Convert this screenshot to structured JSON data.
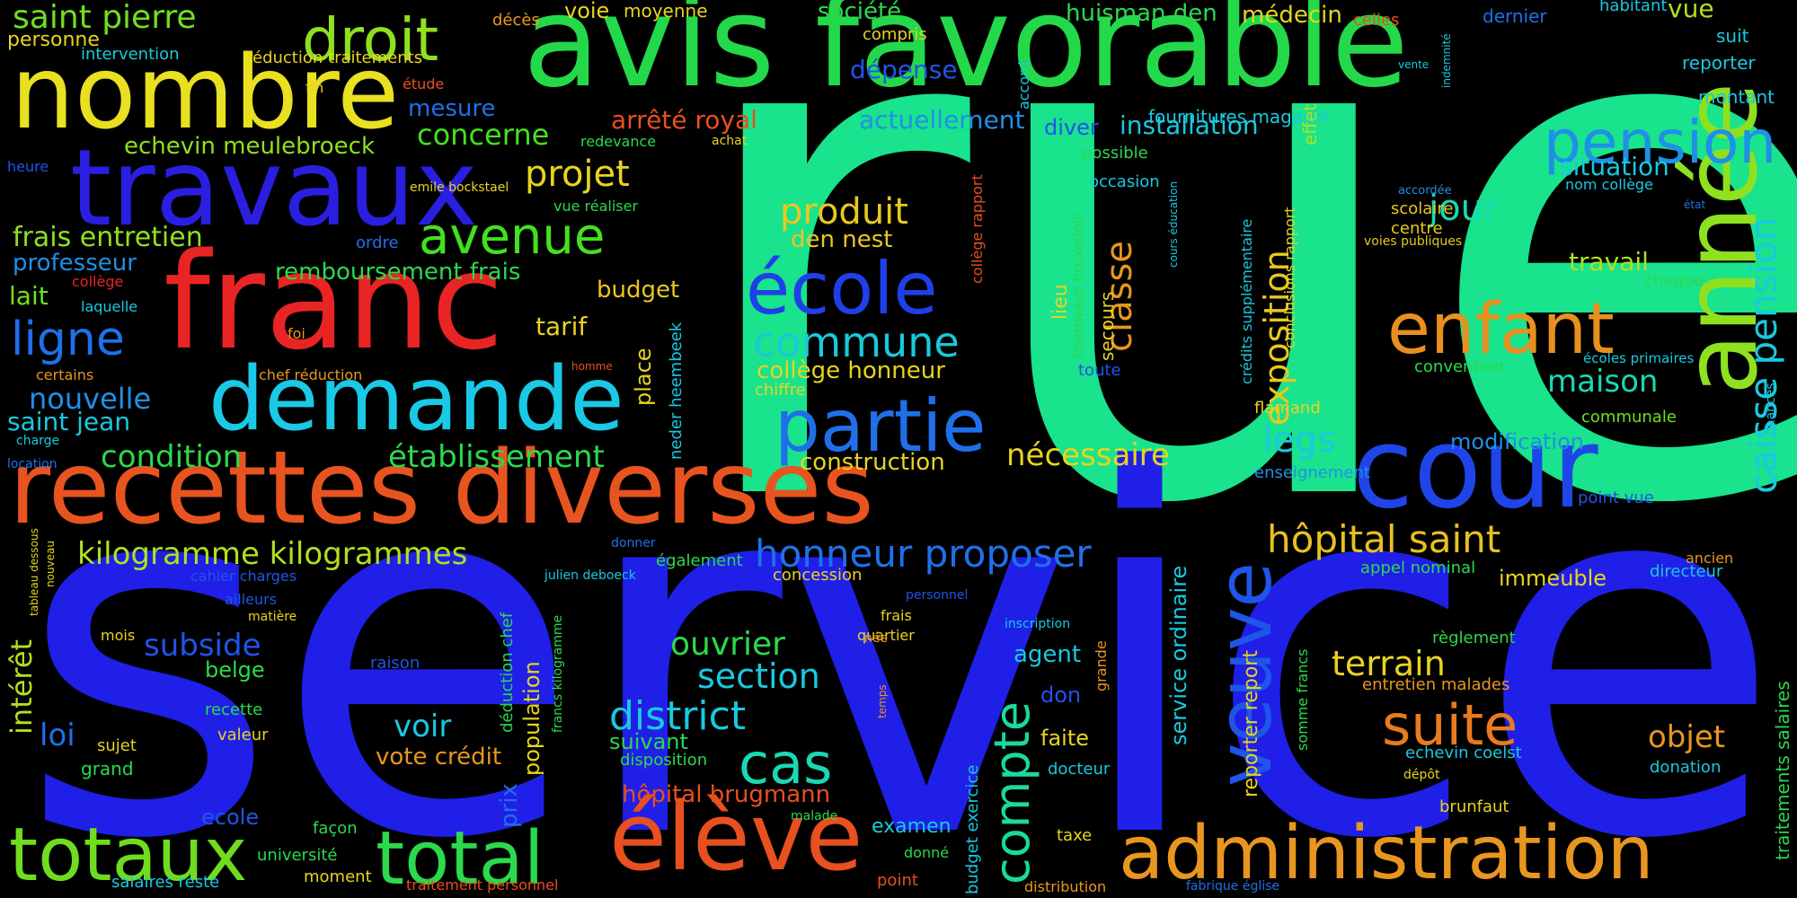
{
  "words": [
    {
      "text": "rue",
      "color": "#19e38c"
    },
    {
      "text": "service",
      "color": "#1f1fe8"
    },
    {
      "text": "avis favorable",
      "color": "#23d94a"
    },
    {
      "text": "recettes diverses",
      "color": "#e8541f"
    },
    {
      "text": "franc",
      "color": "#e82424"
    },
    {
      "text": "nombre",
      "color": "#e8e020"
    },
    {
      "text": "travaux",
      "color": "#2a1fe0"
    },
    {
      "text": "demande",
      "color": "#19c9e6"
    },
    {
      "text": "année",
      "color": "#8fe01f"
    },
    {
      "text": "cour",
      "color": "#1f45e8"
    },
    {
      "text": "administration",
      "color": "#e8961f"
    },
    {
      "text": "élève",
      "color": "#e8501f"
    },
    {
      "text": "total",
      "color": "#2bd94d"
    },
    {
      "text": "totaux",
      "color": "#6fdc1f"
    },
    {
      "text": "enfant",
      "color": "#e8901f"
    },
    {
      "text": "veuve",
      "color": "#1f55e8"
    },
    {
      "text": "droit",
      "color": "#8fe01f"
    },
    {
      "text": "école",
      "color": "#1f3fe8"
    },
    {
      "text": "partie",
      "color": "#1f70e8"
    },
    {
      "text": "pension",
      "color": "#1f90e8"
    },
    {
      "text": "suite",
      "color": "#e87a1f"
    },
    {
      "text": "cas",
      "color": "#19d9b4"
    },
    {
      "text": "avenue",
      "color": "#44e01f"
    },
    {
      "text": "commune",
      "color": "#19c9d9"
    },
    {
      "text": "compte",
      "color": "#19d9a0"
    },
    {
      "text": "caisse pension",
      "color": "#19c9e0"
    },
    {
      "text": "hôpital saint",
      "color": "#e8c01f"
    },
    {
      "text": "district",
      "color": "#19c9e0"
    },
    {
      "text": "ligne",
      "color": "#1f70e8"
    },
    {
      "text": "saint pierre",
      "color": "#6fe01f"
    },
    {
      "text": "produit",
      "color": "#e8c81f"
    },
    {
      "text": "projet",
      "color": "#e8d41f"
    },
    {
      "text": "exposition",
      "color": "#e8c81f"
    },
    {
      "text": "classe",
      "color": "#e8961f"
    },
    {
      "text": "honneur proposer",
      "color": "#1f70e8"
    },
    {
      "text": "kilogramme kilogrammes",
      "color": "#b0e01f"
    },
    {
      "text": "terrain",
      "color": "#e8d41f"
    },
    {
      "text": "jour",
      "color": "#19d9b4"
    },
    {
      "text": "legs",
      "color": "#19c9e0"
    },
    {
      "text": "maison",
      "color": "#19d9b4"
    },
    {
      "text": "objet",
      "color": "#e8961f"
    },
    {
      "text": "ouvrier",
      "color": "#2bd94d"
    },
    {
      "text": "section",
      "color": "#19c9e0"
    },
    {
      "text": "veuve",
      "color": "#1f55e8"
    },
    {
      "text": "condition",
      "color": "#2bd94d"
    },
    {
      "text": "établissement",
      "color": "#2bd94d"
    },
    {
      "text": "nécessaire",
      "color": "#e8d41f"
    },
    {
      "text": "nouvelle",
      "color": "#1f90e8"
    },
    {
      "text": "concerne",
      "color": "#44e01f"
    },
    {
      "text": "subside",
      "color": "#1f55e8"
    },
    {
      "text": "voir",
      "color": "#19c9e0"
    },
    {
      "text": "intérêt",
      "color": "#b0e01f"
    },
    {
      "text": "loi",
      "color": "#1f70e8"
    },
    {
      "text": "saint jean",
      "color": "#19c9e0"
    },
    {
      "text": "frais entretien",
      "color": "#8fe01f"
    },
    {
      "text": "echevin meulebroeck",
      "color": "#8fe01f"
    },
    {
      "text": "remboursement frais",
      "color": "#2bd94d"
    },
    {
      "text": "professeur",
      "color": "#1f90e8"
    },
    {
      "text": "lait",
      "color": "#6fe01f"
    },
    {
      "text": "arrêté royal",
      "color": "#e8501f"
    },
    {
      "text": "actuellement",
      "color": "#1f90e8"
    },
    {
      "text": "installation",
      "color": "#19c9e0"
    },
    {
      "text": "situation",
      "color": "#19c9e0"
    },
    {
      "text": "travail",
      "color": "#b0e01f"
    },
    {
      "text": "budget",
      "color": "#e8c81f"
    },
    {
      "text": "tarif",
      "color": "#e8d41f"
    },
    {
      "text": "construction",
      "color": "#e8d41f"
    },
    {
      "text": "collège honneur",
      "color": "#e8d41f"
    },
    {
      "text": "den nest",
      "color": "#e8c81f"
    },
    {
      "text": "société",
      "color": "#2bd94d"
    },
    {
      "text": "huisman den",
      "color": "#2bd94d"
    },
    {
      "text": "médecin",
      "color": "#e8d41f"
    },
    {
      "text": "dépense",
      "color": "#1f55e8"
    },
    {
      "text": "mesure",
      "color": "#1f70e8"
    },
    {
      "text": "voie",
      "color": "#e8d41f"
    },
    {
      "text": "moyenne",
      "color": "#e8d41f"
    },
    {
      "text": "vue",
      "color": "#b0e01f"
    },
    {
      "text": "dernier",
      "color": "#1f70e8"
    },
    {
      "text": "habitant",
      "color": "#19c9e0"
    },
    {
      "text": "suit",
      "color": "#19c9e0"
    },
    {
      "text": "reporter",
      "color": "#19c9e0"
    },
    {
      "text": "montant",
      "color": "#19c9e0"
    },
    {
      "text": "fournitures magasin",
      "color": "#19c9e0"
    },
    {
      "text": "scolaire",
      "color": "#e8c81f"
    },
    {
      "text": "centre",
      "color": "#e8c81f"
    },
    {
      "text": "voies publiques",
      "color": "#e8c81f"
    },
    {
      "text": "accordée",
      "color": "#1f90e8"
    },
    {
      "text": "état",
      "color": "#1f70e8"
    },
    {
      "text": "nom collège",
      "color": "#19c9e0"
    },
    {
      "text": "chaque",
      "color": "#2bd94d"
    },
    {
      "text": "convention",
      "color": "#2bd94d"
    },
    {
      "text": "écoles primaires",
      "color": "#19c9e0"
    },
    {
      "text": "communale",
      "color": "#6fe01f"
    },
    {
      "text": "modification",
      "color": "#1f90e8"
    },
    {
      "text": "enseignement",
      "color": "#1f90e8"
    },
    {
      "text": "point vue",
      "color": "#1f55e8"
    },
    {
      "text": "appel nominal",
      "color": "#2bd94d"
    },
    {
      "text": "immeuble",
      "color": "#e8d41f"
    },
    {
      "text": "ancien",
      "color": "#e8961f"
    },
    {
      "text": "directeur",
      "color": "#19c9e0"
    },
    {
      "text": "règlement",
      "color": "#2bd94d"
    },
    {
      "text": "entretien malades",
      "color": "#e8961f"
    },
    {
      "text": "echevin coelst",
      "color": "#19c9e0"
    },
    {
      "text": "dépôt",
      "color": "#e8d41f"
    },
    {
      "text": "donation",
      "color": "#19c9e0"
    },
    {
      "text": "brunfaut",
      "color": "#e8d41f"
    },
    {
      "text": "somme francs",
      "color": "#2bd94d"
    },
    {
      "text": "reporter report",
      "color": "#e8d41f"
    },
    {
      "text": "service ordinaire",
      "color": "#19c9e0"
    },
    {
      "text": "flamand",
      "color": "#e8d41f"
    },
    {
      "text": "possible",
      "color": "#2bd94d"
    },
    {
      "text": "occasion",
      "color": "#19c9e0"
    },
    {
      "text": "toute",
      "color": "#1f55e8"
    },
    {
      "text": "secours",
      "color": "#e8d41f"
    },
    {
      "text": "lieu",
      "color": "#e8d41f"
    },
    {
      "text": "diver",
      "color": "#1f55e8"
    },
    {
      "text": "emile bockstael",
      "color": "#e8d41f"
    },
    {
      "text": "redevance",
      "color": "#2bd94d"
    },
    {
      "text": "achat",
      "color": "#e8d41f"
    },
    {
      "text": "vue réaliser",
      "color": "#2bd94d"
    },
    {
      "text": "ordre",
      "color": "#1f70e8"
    },
    {
      "text": "collège",
      "color": "#e82424"
    },
    {
      "text": "laquelle",
      "color": "#19c9e0"
    },
    {
      "text": "foi",
      "color": "#e8961f"
    },
    {
      "text": "certains",
      "color": "#e8961f"
    },
    {
      "text": "chef réduction",
      "color": "#e8961f"
    },
    {
      "text": "homme",
      "color": "#e8501f"
    },
    {
      "text": "charge",
      "color": "#19c9e0"
    },
    {
      "text": "location",
      "color": "#1f70e8"
    },
    {
      "text": "heure",
      "color": "#1f55e8"
    },
    {
      "text": "personne",
      "color": "#e8d41f"
    },
    {
      "text": "intervention",
      "color": "#19c9e0"
    },
    {
      "text": "réduction traitements",
      "color": "#e8d41f"
    },
    {
      "text": "fin",
      "color": "#e8d41f"
    },
    {
      "text": "étude",
      "color": "#e8501f"
    },
    {
      "text": "décès",
      "color": "#e8961f"
    },
    {
      "text": "compris",
      "color": "#e8d41f"
    },
    {
      "text": "celles",
      "color": "#e8501f"
    },
    {
      "text": "indemnité",
      "color": "#19c9e0"
    },
    {
      "text": "vente",
      "color": "#19c9e0"
    },
    {
      "text": "accord",
      "color": "#19c9e0"
    },
    {
      "text": "effet",
      "color": "#b0e01f"
    },
    {
      "text": "tramways bruxellois",
      "color": "#2bd94d"
    },
    {
      "text": "collège rapport",
      "color": "#e8501f"
    },
    {
      "text": "cours éducation",
      "color": "#19c9e0"
    },
    {
      "text": "crédits supplémentaire",
      "color": "#19c9e0"
    },
    {
      "text": "conclusions rapport",
      "color": "#e8d41f"
    },
    {
      "text": "neder heembeek",
      "color": "#19c9e0"
    },
    {
      "text": "place",
      "color": "#e8d41f"
    },
    {
      "text": "chiffre",
      "color": "#e8d41f"
    },
    {
      "text": "section finances",
      "color": "#19c9e0"
    },
    {
      "text": "traitements salaires",
      "color": "#2bd94d"
    },
    {
      "text": "cahier charges",
      "color": "#1f55e8"
    },
    {
      "text": "julien deboeck",
      "color": "#19c9e0"
    },
    {
      "text": "donner",
      "color": "#1f70e8"
    },
    {
      "text": "également",
      "color": "#2bd94d"
    },
    {
      "text": "concession",
      "color": "#e8d41f"
    },
    {
      "text": "personnel",
      "color": "#1f55e8"
    },
    {
      "text": "inscription",
      "color": "#19c9e0"
    },
    {
      "text": "agent",
      "color": "#19c9e0"
    },
    {
      "text": "frais",
      "color": "#e8d41f"
    },
    {
      "text": "quartier",
      "color": "#e8d41f"
    },
    {
      "text": "don",
      "color": "#1f55e8"
    },
    {
      "text": "faite",
      "color": "#e8d41f"
    },
    {
      "text": "docteur",
      "color": "#19c9e0"
    },
    {
      "text": "grande",
      "color": "#e8961f"
    },
    {
      "text": "née",
      "color": "#e8961f"
    },
    {
      "text": "temps",
      "color": "#e8961f"
    },
    {
      "text": "examen",
      "color": "#19c9e0"
    },
    {
      "text": "donné",
      "color": "#2bd94d"
    },
    {
      "text": "taxe",
      "color": "#e8d41f"
    },
    {
      "text": "distribution",
      "color": "#e8961f"
    },
    {
      "text": "fabrique église",
      "color": "#1f70e8"
    },
    {
      "text": "budget exercice",
      "color": "#19c9e0"
    },
    {
      "text": "point",
      "color": "#e8501f"
    },
    {
      "text": "malade",
      "color": "#2bd94d"
    },
    {
      "text": "hôpital brugmann",
      "color": "#e8501f"
    },
    {
      "text": "disposition",
      "color": "#2bd94d"
    },
    {
      "text": "suivant",
      "color": "#2bd94d"
    },
    {
      "text": "vote crédit",
      "color": "#e8961f"
    },
    {
      "text": "population",
      "color": "#e8d41f"
    },
    {
      "text": "prix",
      "color": "#1f70e8"
    },
    {
      "text": "déduction chef",
      "color": "#2bd94d"
    },
    {
      "text": "francs kilogramme",
      "color": "#2bd94d"
    },
    {
      "text": "traitement personnel",
      "color": "#e8501f"
    },
    {
      "text": "université",
      "color": "#2bd94d"
    },
    {
      "text": "moment",
      "color": "#e8d41f"
    },
    {
      "text": "salaires reste",
      "color": "#19c9e0"
    },
    {
      "text": "façon",
      "color": "#2bd94d"
    },
    {
      "text": "ecole",
      "color": "#1f55e8"
    },
    {
      "text": "grand",
      "color": "#2bd94d"
    },
    {
      "text": "valeur",
      "color": "#e8d41f"
    },
    {
      "text": "recette",
      "color": "#2bd94d"
    },
    {
      "text": "belge",
      "color": "#2bd94d"
    },
    {
      "text": "raison",
      "color": "#1f55e8"
    },
    {
      "text": "sujet",
      "color": "#e8d41f"
    },
    {
      "text": "mois",
      "color": "#e8d41f"
    },
    {
      "text": "ailleurs",
      "color": "#1f55e8"
    },
    {
      "text": "matière",
      "color": "#e8d41f"
    },
    {
      "text": "tableau dessous",
      "color": "#e8d41f"
    },
    {
      "text": "nouveau",
      "color": "#e8d41f"
    }
  ]
}
